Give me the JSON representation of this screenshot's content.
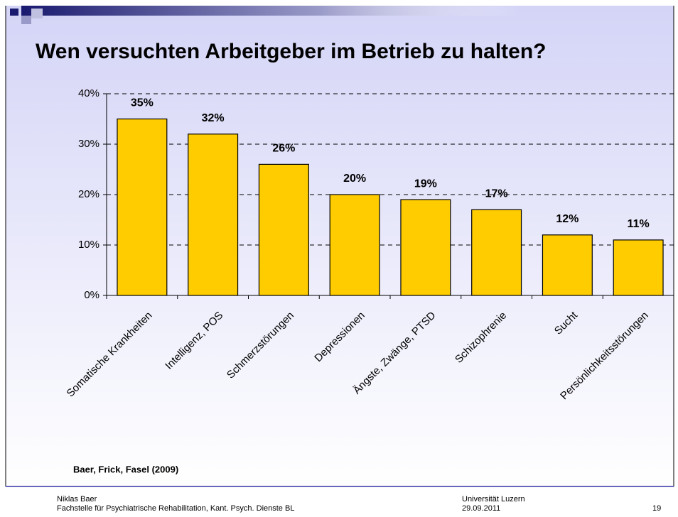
{
  "chart_data": {
    "type": "bar",
    "title": "Wen versuchten Arbeitgeber im Betrieb zu halten?",
    "categories": [
      "Somatische Krankheiten",
      "Intelligenz, POS",
      "Schmerzstörungen",
      "Depressionen",
      "Ängste, Zwänge, PTSD",
      "Schizophrenie",
      "Sucht",
      "Persönlichkeitsstörungen"
    ],
    "values": [
      35,
      32,
      26,
      20,
      19,
      17,
      12,
      11
    ],
    "value_labels": [
      "35%",
      "32%",
      "26%",
      "20%",
      "19%",
      "17%",
      "12%",
      "11%"
    ],
    "color": "#ffcc00",
    "ylim": [
      0,
      40
    ],
    "yticks": [
      {
        "value": 0,
        "label": "0%"
      },
      {
        "value": 10,
        "label": "10%"
      },
      {
        "value": 20,
        "label": "20%"
      },
      {
        "value": 30,
        "label": "30%"
      },
      {
        "value": 40,
        "label": "40%"
      }
    ],
    "grid": true,
    "source": "Baer, Frick, Fasel (2009)"
  },
  "footer": {
    "author": "Niklas Baer",
    "institution": "Fachstelle für Psychiatrische Rehabilitation, Kant. Psych. Dienste BL",
    "university": "Universität Luzern",
    "date": "29.09.2011",
    "page": "19"
  }
}
